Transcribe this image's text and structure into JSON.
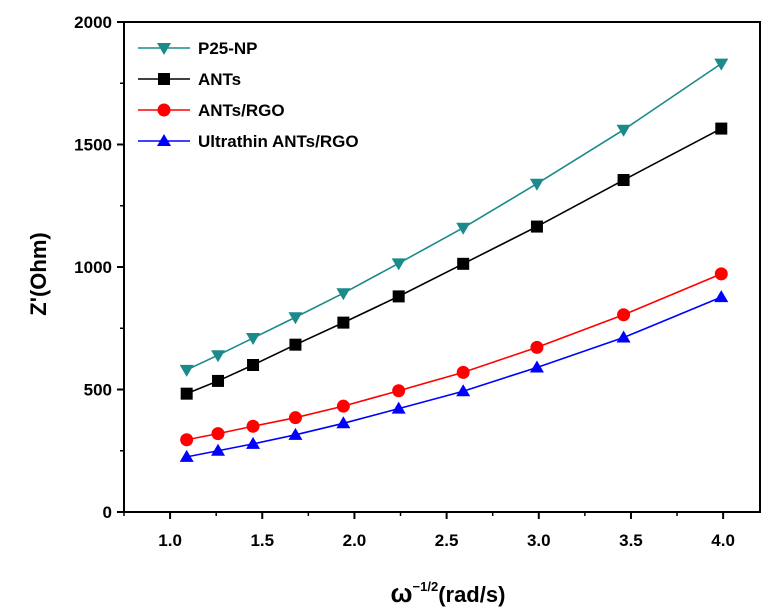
{
  "chart_data": {
    "type": "line",
    "title": "",
    "xlabel": "(rad/s)",
    "xlabel_symbol": "ω",
    "xlabel_exponent": "−1/2",
    "ylabel": "Z'(Ohm)",
    "xlim": [
      0.75,
      4.2
    ],
    "ylim": [
      0,
      2000
    ],
    "xticks": [
      "1.0",
      "1.5",
      "2.0",
      "2.5",
      "3.0",
      "3.5",
      "4.0"
    ],
    "yticks": [
      "0",
      "500",
      "1000",
      "1500",
      "2000"
    ],
    "grid": false,
    "legend_position": "top-left",
    "x": [
      1.09,
      1.26,
      1.45,
      1.68,
      1.94,
      2.24,
      2.59,
      2.99,
      3.46,
      3.99
    ],
    "series": [
      {
        "name": "P25-NP",
        "marker": "triangle-down",
        "color": "#1a8a8a",
        "values": [
          580,
          640,
          710,
          795,
          893,
          1015,
          1160,
          1340,
          1560,
          1830
        ]
      },
      {
        "name": "ANTs",
        "marker": "square",
        "color": "#000000",
        "values": [
          483,
          535,
          600,
          683,
          773,
          880,
          1013,
          1165,
          1355,
          1565
        ]
      },
      {
        "name": "ANTs/RGO",
        "marker": "circle",
        "color": "#ff0000",
        "values": [
          295,
          320,
          350,
          385,
          432,
          495,
          570,
          672,
          805,
          972
        ]
      },
      {
        "name": "Ultrathin ANTs/RGO",
        "marker": "triangle-up",
        "color": "#0000ff",
        "values": [
          225,
          250,
          278,
          315,
          362,
          422,
          493,
          590,
          712,
          877
        ]
      }
    ]
  }
}
